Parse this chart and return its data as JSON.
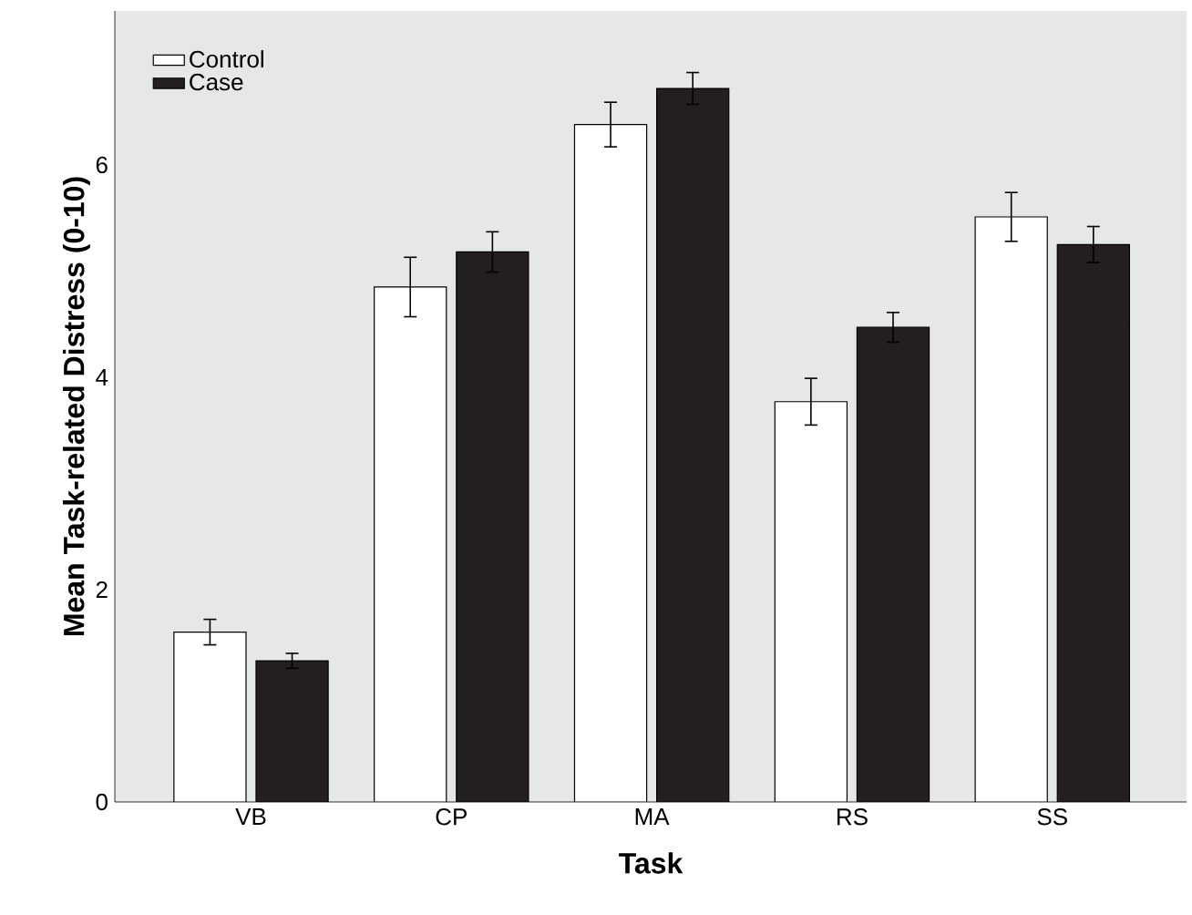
{
  "chart_data": {
    "type": "bar",
    "xlabel": "Task",
    "ylabel": "Mean Task-related Distress (0-10)",
    "categories": [
      "VB",
      "CP",
      "MA",
      "RS",
      "SS"
    ],
    "series": [
      {
        "name": "Control",
        "color": "#ffffff",
        "values": [
          1.6,
          4.85,
          6.38,
          3.77,
          5.51
        ],
        "errors": [
          0.12,
          0.28,
          0.21,
          0.22,
          0.23
        ]
      },
      {
        "name": "Case",
        "color": "#231f20",
        "values": [
          1.33,
          5.18,
          6.72,
          4.47,
          5.25
        ],
        "errors": [
          0.07,
          0.19,
          0.15,
          0.14,
          0.17
        ]
      }
    ],
    "ylim": [
      0,
      7.45
    ],
    "yticks": [
      0,
      2,
      4,
      6
    ],
    "legend": "top left"
  }
}
